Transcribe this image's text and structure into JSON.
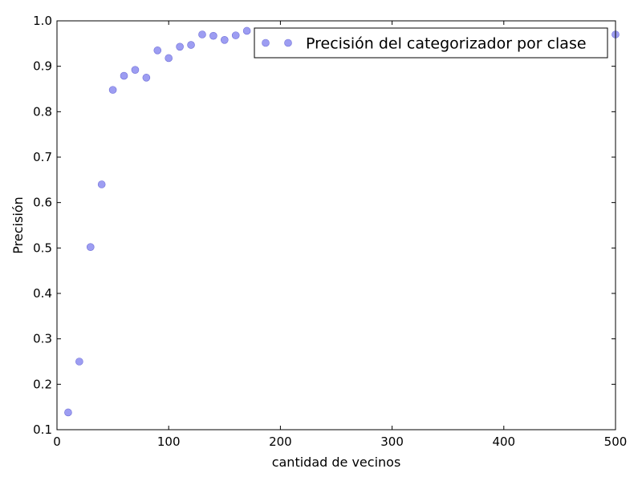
{
  "chart_data": {
    "type": "scatter",
    "title": "",
    "xlabel": "cantidad de vecinos",
    "ylabel": "Precisión",
    "xlim": [
      0,
      500
    ],
    "ylim": [
      0.1,
      1.0
    ],
    "xticks": [
      0,
      100,
      200,
      300,
      400,
      500
    ],
    "yticks": [
      0.1,
      0.2,
      0.3,
      0.4,
      0.5,
      0.6,
      0.7,
      0.8,
      0.9,
      1.0
    ],
    "xtick_labels": [
      "0",
      "100",
      "200",
      "300",
      "400",
      "500"
    ],
    "ytick_labels": [
      "0.1",
      "0.2",
      "0.3",
      "0.4",
      "0.5",
      "0.6",
      "0.7",
      "0.8",
      "0.9",
      "1.0"
    ],
    "grid": false,
    "legend_position": "top-right",
    "series": [
      {
        "name": "Precisión del categorizador por clase",
        "color": "#8c8cf0",
        "x": [
          10,
          20,
          30,
          40,
          50,
          60,
          70,
          80,
          90,
          100,
          110,
          120,
          130,
          140,
          150,
          160,
          170,
          500
        ],
        "y": [
          0.138,
          0.25,
          0.502,
          0.64,
          0.848,
          0.879,
          0.892,
          0.875,
          0.935,
          0.918,
          0.943,
          0.947,
          0.97,
          0.967,
          0.958,
          0.968,
          0.978,
          0.97
        ]
      }
    ]
  }
}
